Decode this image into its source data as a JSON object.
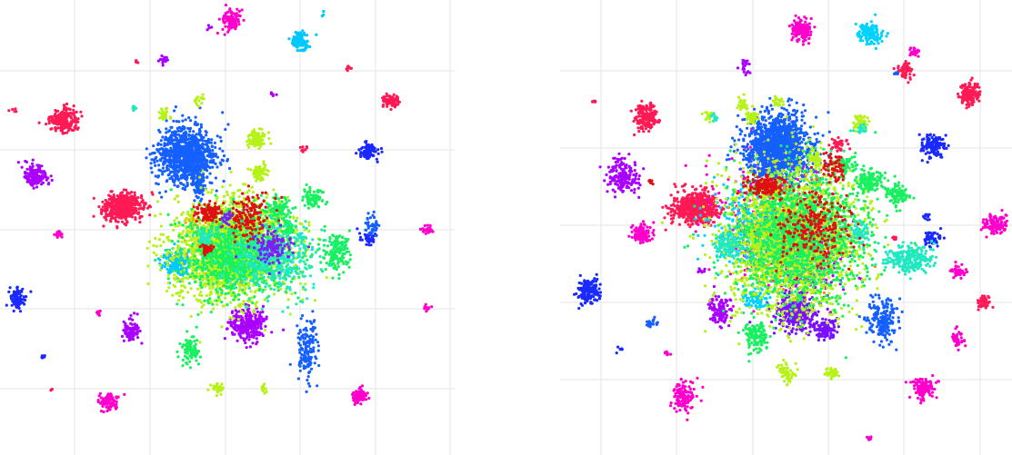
{
  "chart_data": [
    {
      "type": "scatter",
      "title": "",
      "xlabel": "",
      "ylabel": "",
      "grid": true,
      "legend": "none",
      "series": [
        {
          "color": "#ff1a55",
          "points": [
            [
              70,
              133,
              14,
              11,
              220
            ],
            [
              135,
              228,
              20,
              14,
              500
            ],
            [
              430,
              110,
              9,
              6,
              80
            ],
            [
              335,
              165,
              4,
              4,
              10
            ],
            [
              383,
              75,
              4,
              3,
              8
            ],
            [
              15,
              122,
              3,
              2,
              5
            ],
            [
              150,
              68,
              2,
              2,
              4
            ],
            [
              56,
              428,
              2,
              2,
              3
            ]
          ]
        },
        {
          "color": "#ff00cc",
          "points": [
            [
              255,
              22,
              9,
              10,
              120
            ],
            [
              120,
              442,
              9,
              8,
              90
            ],
            [
              395,
              437,
              8,
              8,
              80
            ],
            [
              65,
              258,
              5,
              4,
              20
            ],
            [
              470,
              253,
              6,
              4,
              25
            ],
            [
              470,
              340,
              4,
              4,
              12
            ],
            [
              108,
              345,
              3,
              3,
              8
            ],
            [
              18,
              335,
              3,
              3,
              6
            ]
          ]
        },
        {
          "color": "#00c8ff",
          "points": [
            [
              330,
              45,
              9,
              9,
              100
            ],
            [
              195,
              290,
              14,
              12,
              180
            ],
            [
              355,
              15,
              2,
              2,
              3
            ]
          ]
        },
        {
          "color": "#aa00ff",
          "points": [
            [
              40,
              193,
              12,
              11,
              150
            ],
            [
              145,
              365,
              8,
              12,
              90
            ],
            [
              272,
              357,
              19,
              16,
              260
            ],
            [
              180,
              68,
              5,
              6,
              15
            ],
            [
              300,
              104,
              3,
              3,
              6
            ],
            [
              230,
              30,
              2,
              2,
              4
            ]
          ]
        },
        {
          "color": "#1a2aff",
          "points": [
            [
              405,
              167,
              8,
              9,
              90
            ],
            [
              20,
              330,
              8,
              12,
              90
            ],
            [
              405,
              262,
              7,
              6,
              40
            ],
            [
              47,
              392,
              3,
              3,
              6
            ]
          ]
        },
        {
          "color": "#1560ff",
          "points": [
            [
              205,
              172,
              30,
              28,
              1000
            ],
            [
              220,
              205,
              5,
              16,
              60
            ],
            [
              338,
              385,
              10,
              28,
              140
            ],
            [
              410,
              248,
              7,
              10,
              40
            ]
          ]
        },
        {
          "color": "#ff8c00",
          "points": [
            [
              250,
              275,
              35,
              30,
              200
            ],
            [
              210,
              245,
              8,
              8,
              20
            ]
          ]
        },
        {
          "color": "#b6f218",
          "points": [
            [
              255,
              275,
              58,
              48,
              2000
            ],
            [
              282,
              153,
              10,
              9,
              90
            ],
            [
              285,
              190,
              8,
              8,
              60
            ],
            [
              180,
              125,
              6,
              6,
              25
            ],
            [
              220,
              110,
              5,
              5,
              15
            ],
            [
              240,
              428,
              7,
              6,
              30
            ],
            [
              290,
              428,
              4,
              4,
              10
            ]
          ]
        },
        {
          "color": "#18f060",
          "points": [
            [
              260,
              280,
              52,
              40,
              1000
            ],
            [
              210,
              385,
              9,
              15,
              80
            ],
            [
              305,
              230,
              14,
              12,
              90
            ],
            [
              345,
              218,
              12,
              10,
              80
            ],
            [
              318,
              250,
              8,
              7,
              40
            ],
            [
              370,
              275,
              14,
              22,
              150
            ]
          ]
        },
        {
          "color": "#20e8c0",
          "points": [
            [
              300,
              285,
              45,
              35,
              400
            ],
            [
              228,
              260,
              10,
              10,
              40
            ],
            [
              330,
              262,
              6,
              6,
              20
            ],
            [
              148,
              118,
              3,
              3,
              8
            ]
          ]
        },
        {
          "color": "#e01010",
          "points": [
            [
              230,
              235,
              14,
              10,
              120
            ],
            [
              228,
              275,
              6,
              5,
              40
            ],
            [
              275,
              240,
              25,
              22,
              150
            ]
          ]
        },
        {
          "color": "#7a20ff",
          "points": [
            [
              300,
              272,
              22,
              18,
              120
            ],
            [
              250,
              240,
              6,
              6,
              20
            ]
          ]
        }
      ]
    },
    {
      "type": "scatter",
      "title": "",
      "xlabel": "",
      "ylabel": "",
      "grid": true,
      "legend": "none",
      "series": [
        {
          "color": "#ff1a55",
          "points": [
            [
              95,
              128,
              11,
              13,
              160
            ],
            [
              148,
              228,
              22,
              16,
              600
            ],
            [
              450,
              103,
              12,
              11,
              150
            ],
            [
              305,
              160,
              9,
              7,
              40
            ],
            [
              380,
              78,
              9,
              9,
              50
            ],
            [
              465,
              333,
              7,
              7,
              40
            ],
            [
              368,
              262,
              3,
              3,
              8
            ],
            [
              37,
              112,
              3,
              2,
              5
            ]
          ]
        },
        {
          "color": "#ff00cc",
          "points": [
            [
              265,
              33,
              11,
              11,
              140
            ],
            [
              90,
              258,
              11,
              10,
              110
            ],
            [
              135,
              437,
              11,
              14,
              120
            ],
            [
              400,
              428,
              11,
              11,
              120
            ],
            [
              480,
              248,
              12,
              11,
              120
            ],
            [
              438,
              298,
              7,
              7,
              40
            ],
            [
              438,
              373,
              7,
              7,
              40
            ],
            [
              390,
              58,
              5,
              5,
              20
            ],
            [
              340,
              482,
              3,
              3,
              8
            ],
            [
              118,
              390,
              3,
              3,
              8
            ],
            [
              235,
              238,
              60,
              70,
              400
            ]
          ]
        },
        {
          "color": "#00d2ff",
          "points": [
            [
              340,
              38,
              12,
              11,
              140
            ],
            [
              215,
              330,
              12,
              12,
              80
            ],
            [
              215,
              255,
              45,
              40,
              400
            ]
          ]
        },
        {
          "color": "#aa00ff",
          "points": [
            [
              70,
              193,
              15,
              16,
              180
            ],
            [
              175,
              343,
              10,
              16,
              110
            ],
            [
              203,
              73,
              6,
              8,
              20
            ],
            [
              155,
              298,
              4,
              4,
              10
            ],
            [
              270,
              288,
              40,
              40,
              200
            ]
          ]
        },
        {
          "color": "#1a2aff",
          "points": [
            [
              410,
              160,
              12,
              11,
              120
            ],
            [
              30,
              322,
              12,
              13,
              150
            ],
            [
              410,
              262,
              9,
              7,
              50
            ],
            [
              65,
              385,
              3,
              3,
              6
            ],
            [
              403,
              238,
              4,
              4,
              10
            ]
          ]
        },
        {
          "color": "#1560ff",
          "points": [
            [
              240,
              163,
              32,
              35,
              1300
            ],
            [
              355,
              352,
              15,
              22,
              180
            ],
            [
              100,
              355,
              6,
              6,
              20
            ],
            [
              370,
              80,
              3,
              3,
              8
            ]
          ]
        },
        {
          "color": "#7a10ff",
          "points": [
            [
              260,
              345,
              22,
              18,
              280
            ],
            [
              290,
              362,
              12,
              10,
              120
            ]
          ]
        },
        {
          "color": "#ff8c00",
          "points": [
            [
              255,
              270,
              45,
              45,
              300
            ],
            [
              230,
              210,
              8,
              8,
              30
            ]
          ]
        },
        {
          "color": "#b6f218",
          "points": [
            [
              255,
              265,
              65,
              70,
              2200
            ],
            [
              210,
              128,
              7,
              7,
              40
            ],
            [
              240,
              112,
              5,
              5,
              20
            ],
            [
              280,
              175,
              9,
              9,
              50
            ],
            [
              330,
              135,
              8,
              8,
              40
            ],
            [
              250,
              410,
              9,
              9,
              50
            ],
            [
              298,
              410,
              7,
              7,
              40
            ],
            [
              163,
              128,
              5,
              5,
              15
            ],
            [
              200,
              115,
              6,
              6,
              25
            ]
          ]
        },
        {
          "color": "#18f060",
          "points": [
            [
              265,
              260,
              65,
              65,
              1300
            ],
            [
              340,
              200,
              15,
              12,
              120
            ],
            [
              370,
              213,
              12,
              11,
              90
            ],
            [
              215,
              370,
              12,
              15,
              120
            ],
            [
              315,
              180,
              10,
              10,
              60
            ]
          ]
        },
        {
          "color": "#20e8c0",
          "points": [
            [
              385,
              285,
              22,
              14,
              250
            ],
            [
              185,
              270,
              15,
              12,
              120
            ],
            [
              330,
              255,
              12,
              10,
              60
            ],
            [
              330,
              143,
              6,
              6,
              20
            ],
            [
              170,
              130,
              4,
              4,
              10
            ]
          ]
        },
        {
          "color": "#e01010",
          "points": [
            [
              225,
              205,
              20,
              12,
              150
            ],
            [
              280,
              250,
              35,
              35,
              250
            ],
            [
              300,
              185,
              10,
              15,
              60
            ],
            [
              100,
              200,
              3,
              3,
              8
            ]
          ]
        }
      ]
    }
  ]
}
